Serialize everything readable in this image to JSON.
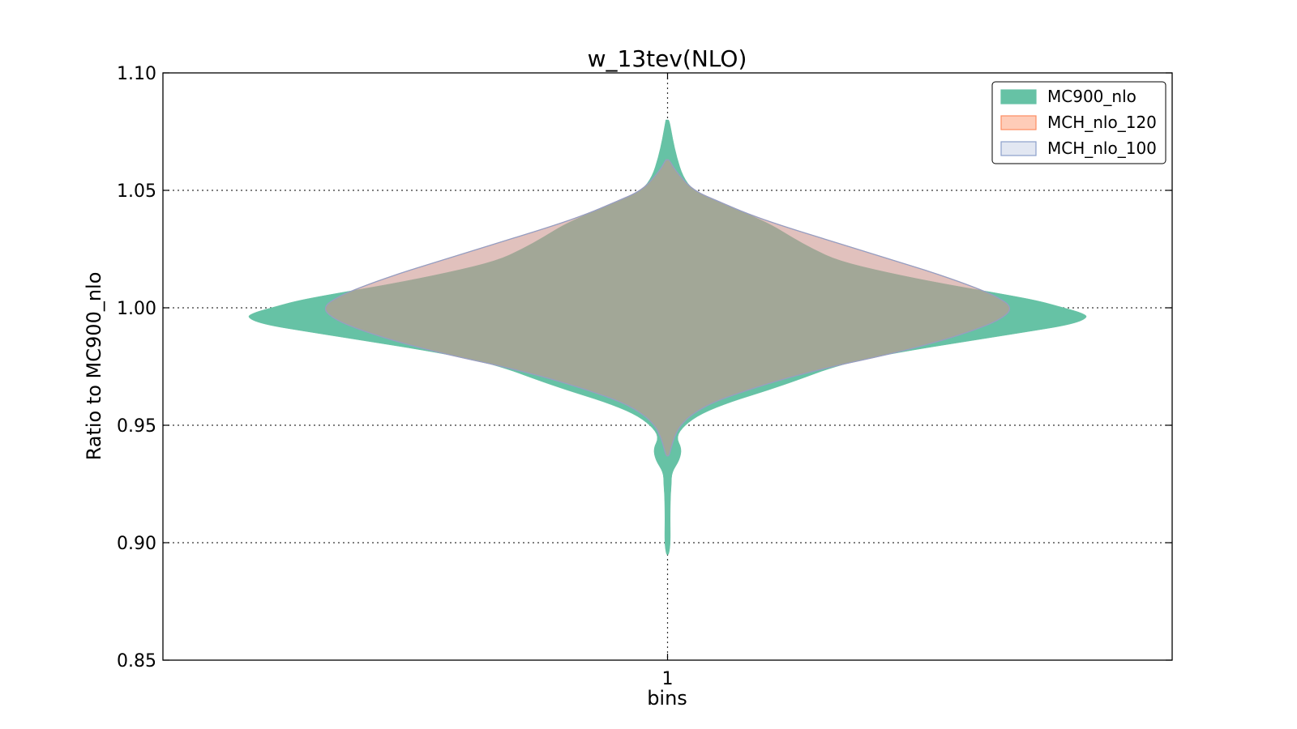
{
  "chart_data": {
    "type": "violin",
    "title": "w_13tev(NLO)",
    "xlabel": "bins",
    "ylabel": "Ratio to MC900_nlo",
    "categories": [
      "1"
    ],
    "ylim": [
      0.85,
      1.1
    ],
    "yticks": [
      0.85,
      0.9,
      0.95,
      1.0,
      1.05,
      1.1
    ],
    "ytick_labels": [
      "0.85",
      "0.90",
      "0.95",
      "1.00",
      "1.05",
      "1.10"
    ],
    "grid": true,
    "legend": {
      "placement": "top-right"
    },
    "series": [
      {
        "name": "MC900_nlo",
        "color": "#66c2a5",
        "fill_opacity": 1.0,
        "profile": [
          [
            1.08,
            0.004
          ],
          [
            1.072,
            0.012
          ],
          [
            1.064,
            0.022
          ],
          [
            1.056,
            0.036
          ],
          [
            1.05,
            0.06
          ],
          [
            1.045,
            0.12
          ],
          [
            1.04,
            0.19
          ],
          [
            1.035,
            0.25
          ],
          [
            1.03,
            0.295
          ],
          [
            1.025,
            0.345
          ],
          [
            1.02,
            0.405
          ],
          [
            1.015,
            0.52
          ],
          [
            1.01,
            0.66
          ],
          [
            1.006,
            0.79
          ],
          [
            1.003,
            0.88
          ],
          [
            1.0,
            0.94
          ],
          [
            0.998,
            0.98
          ],
          [
            0.996,
            1.0
          ],
          [
            0.993,
            0.96
          ],
          [
            0.99,
            0.86
          ],
          [
            0.986,
            0.72
          ],
          [
            0.982,
            0.58
          ],
          [
            0.978,
            0.46
          ],
          [
            0.974,
            0.38
          ],
          [
            0.97,
            0.32
          ],
          [
            0.965,
            0.24
          ],
          [
            0.96,
            0.15
          ],
          [
            0.955,
            0.08
          ],
          [
            0.95,
            0.04
          ],
          [
            0.945,
            0.02
          ],
          [
            0.94,
            0.034
          ],
          [
            0.935,
            0.028
          ],
          [
            0.93,
            0.01
          ],
          [
            0.925,
            0.009
          ],
          [
            0.92,
            0.007
          ],
          [
            0.91,
            0.006
          ],
          [
            0.9,
            0.007
          ],
          [
            0.895,
            0.003
          ]
        ]
      },
      {
        "name": "MCH_nlo_120",
        "color": "#fc8d62",
        "fill_opacity": 0.45,
        "profile": [
          [
            1.063,
            0.004
          ],
          [
            1.058,
            0.02
          ],
          [
            1.05,
            0.06
          ],
          [
            1.045,
            0.125
          ],
          [
            1.04,
            0.19
          ],
          [
            1.035,
            0.27
          ],
          [
            1.03,
            0.36
          ],
          [
            1.025,
            0.45
          ],
          [
            1.02,
            0.54
          ],
          [
            1.015,
            0.63
          ],
          [
            1.01,
            0.71
          ],
          [
            1.005,
            0.78
          ],
          [
            1.0,
            0.82
          ],
          [
            0.995,
            0.79
          ],
          [
            0.99,
            0.72
          ],
          [
            0.985,
            0.63
          ],
          [
            0.98,
            0.52
          ],
          [
            0.975,
            0.39
          ],
          [
            0.97,
            0.28
          ],
          [
            0.965,
            0.19
          ],
          [
            0.96,
            0.11
          ],
          [
            0.955,
            0.06
          ],
          [
            0.95,
            0.03
          ],
          [
            0.945,
            0.016
          ],
          [
            0.94,
            0.008
          ],
          [
            0.937,
            0.003
          ]
        ]
      },
      {
        "name": "MCH_nlo_100",
        "color": "#8da0cb",
        "fill_opacity": 0.25,
        "profile": [
          [
            1.063,
            0.004
          ],
          [
            1.058,
            0.02
          ],
          [
            1.05,
            0.06
          ],
          [
            1.045,
            0.125
          ],
          [
            1.04,
            0.19
          ],
          [
            1.035,
            0.27
          ],
          [
            1.03,
            0.36
          ],
          [
            1.025,
            0.45
          ],
          [
            1.02,
            0.54
          ],
          [
            1.015,
            0.63
          ],
          [
            1.01,
            0.71
          ],
          [
            1.005,
            0.78
          ],
          [
            1.0,
            0.82
          ],
          [
            0.995,
            0.79
          ],
          [
            0.99,
            0.72
          ],
          [
            0.985,
            0.63
          ],
          [
            0.98,
            0.52
          ],
          [
            0.975,
            0.39
          ],
          [
            0.97,
            0.28
          ],
          [
            0.965,
            0.19
          ],
          [
            0.96,
            0.11
          ],
          [
            0.955,
            0.06
          ],
          [
            0.95,
            0.03
          ],
          [
            0.945,
            0.016
          ],
          [
            0.94,
            0.008
          ],
          [
            0.937,
            0.003
          ]
        ]
      }
    ]
  }
}
